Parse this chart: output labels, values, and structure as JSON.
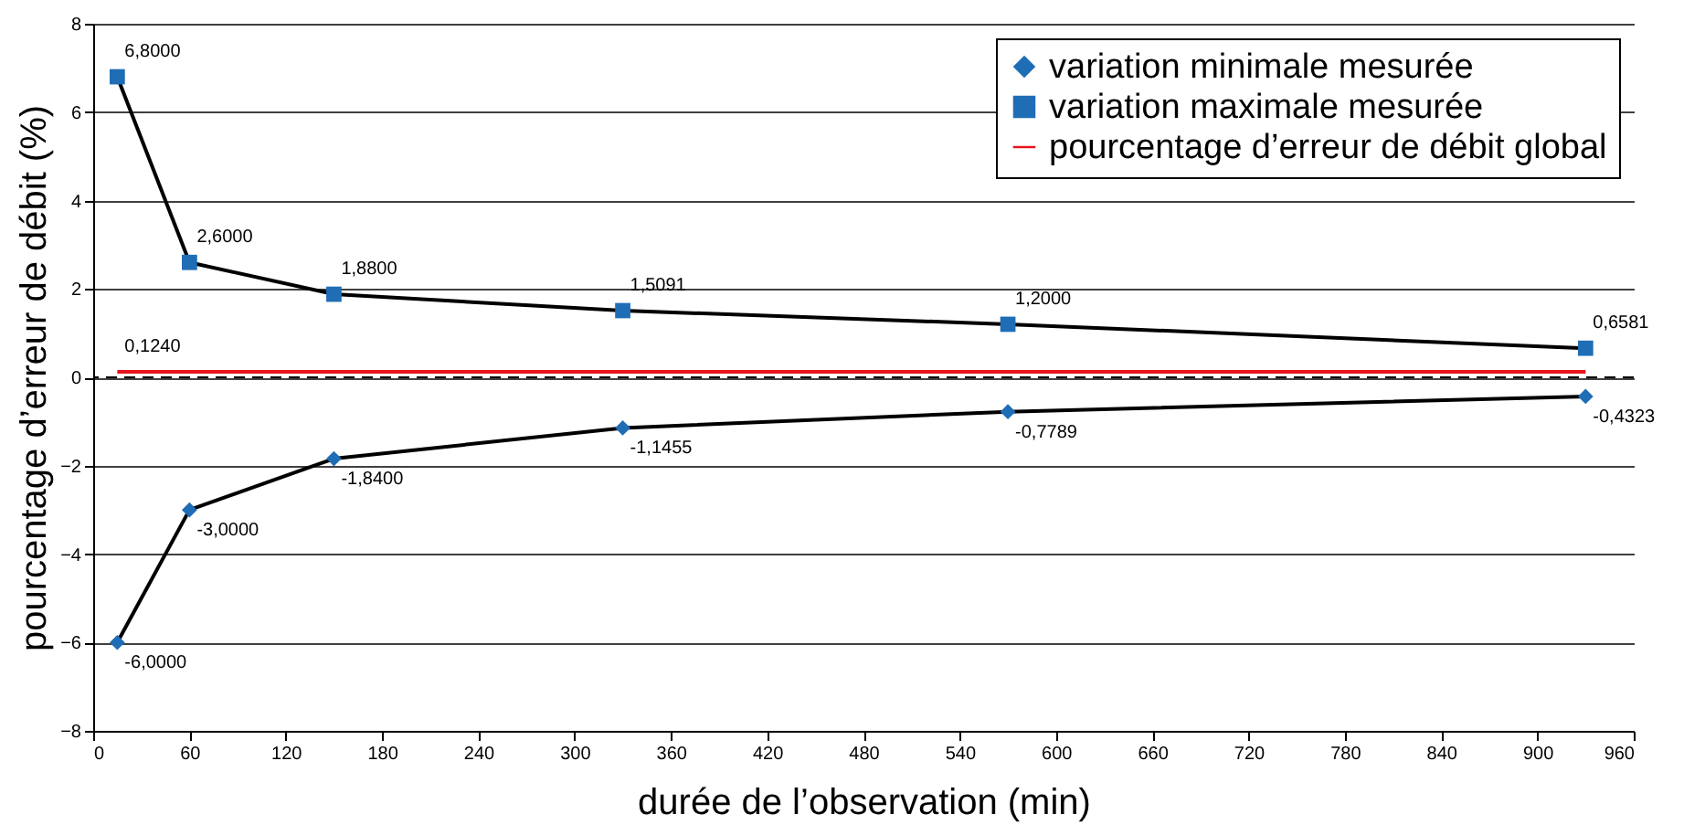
{
  "chart_data": {
    "type": "line",
    "xlabel": "durée de l’observation (min)",
    "ylabel": "pourcentage d’erreur de débit (%)",
    "xlim": [
      0,
      960
    ],
    "xticks": [
      0,
      60,
      120,
      180,
      240,
      300,
      360,
      420,
      480,
      540,
      600,
      660,
      720,
      780,
      840,
      900,
      960
    ],
    "ylim": [
      -8,
      8
    ],
    "yticks": [
      -8,
      -6,
      -4,
      -2,
      0,
      2,
      4,
      6,
      8
    ],
    "grid": "y",
    "legend": "top right",
    "series": [
      {
        "name": "variation minimale mesurée",
        "color": "#1f6db5",
        "marker": "diamond",
        "x": [
          15,
          60,
          150,
          330,
          570,
          930
        ],
        "values": [
          -6,
          -3,
          -1.84,
          -1.1455,
          -0.7789,
          -0.4323
        ],
        "value_labels": [
          "-6,0000",
          "-3,0000",
          "-1,8400",
          "-1,1455",
          "-0,7789",
          "-0,4323"
        ]
      },
      {
        "name": "variation maximale mesurée",
        "color": "#1f6db5",
        "marker": "square",
        "x": [
          15,
          60,
          150,
          330,
          570,
          930
        ],
        "values": [
          6.8,
          2.6,
          1.88,
          1.5091,
          1.2,
          0.6581
        ],
        "value_labels": [
          "6,8000",
          "2,6000",
          "1,8800",
          "1,5091",
          "1,2000",
          "0,6581"
        ]
      },
      {
        "name": "pourcentage d’erreur de débit global",
        "color": "#e8141c",
        "marker": "none",
        "x": [
          15,
          930
        ],
        "values": [
          0.124,
          0.124
        ],
        "value_labels": [
          "0,1240",
          null
        ]
      }
    ],
    "ref_lines": [
      {
        "axis": "y",
        "value": 0,
        "color": "#000000",
        "line_style": "dashed"
      }
    ]
  }
}
